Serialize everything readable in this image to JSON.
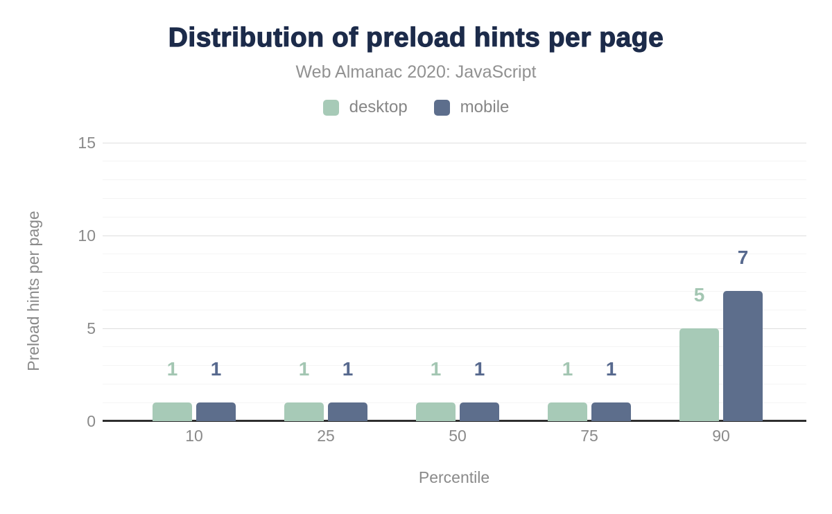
{
  "chart_data": {
    "type": "bar",
    "title": "Distribution of preload hints per page",
    "subtitle": "Web Almanac 2020: JavaScript",
    "xlabel": "Percentile",
    "ylabel": "Preload hints per page",
    "categories": [
      "10",
      "25",
      "50",
      "75",
      "90"
    ],
    "series": [
      {
        "name": "desktop",
        "color": "#a7cab7",
        "label_color": "#a3c6b2",
        "values": [
          1,
          1,
          1,
          1,
          5
        ]
      },
      {
        "name": "mobile",
        "color": "#5d6e8c",
        "label_color": "#57698e",
        "values": [
          1,
          1,
          1,
          1,
          7
        ]
      }
    ],
    "ylim": [
      0,
      15
    ],
    "yticks": [
      0,
      5,
      10,
      15
    ],
    "minor_grid_step": 1,
    "major_grid_step": 5,
    "grid": true,
    "legend_position": "top",
    "value_labels": true
  },
  "colors": {
    "title_text": "#1c2b4a",
    "subtitle_text": "#919191",
    "legend_text": "#868686",
    "tick_text": "#8a8a8a",
    "axis_line": "#2e2e2e",
    "grid_minor": "#f4f4f4",
    "grid_major": "#dedede",
    "background": "#ffffff"
  }
}
